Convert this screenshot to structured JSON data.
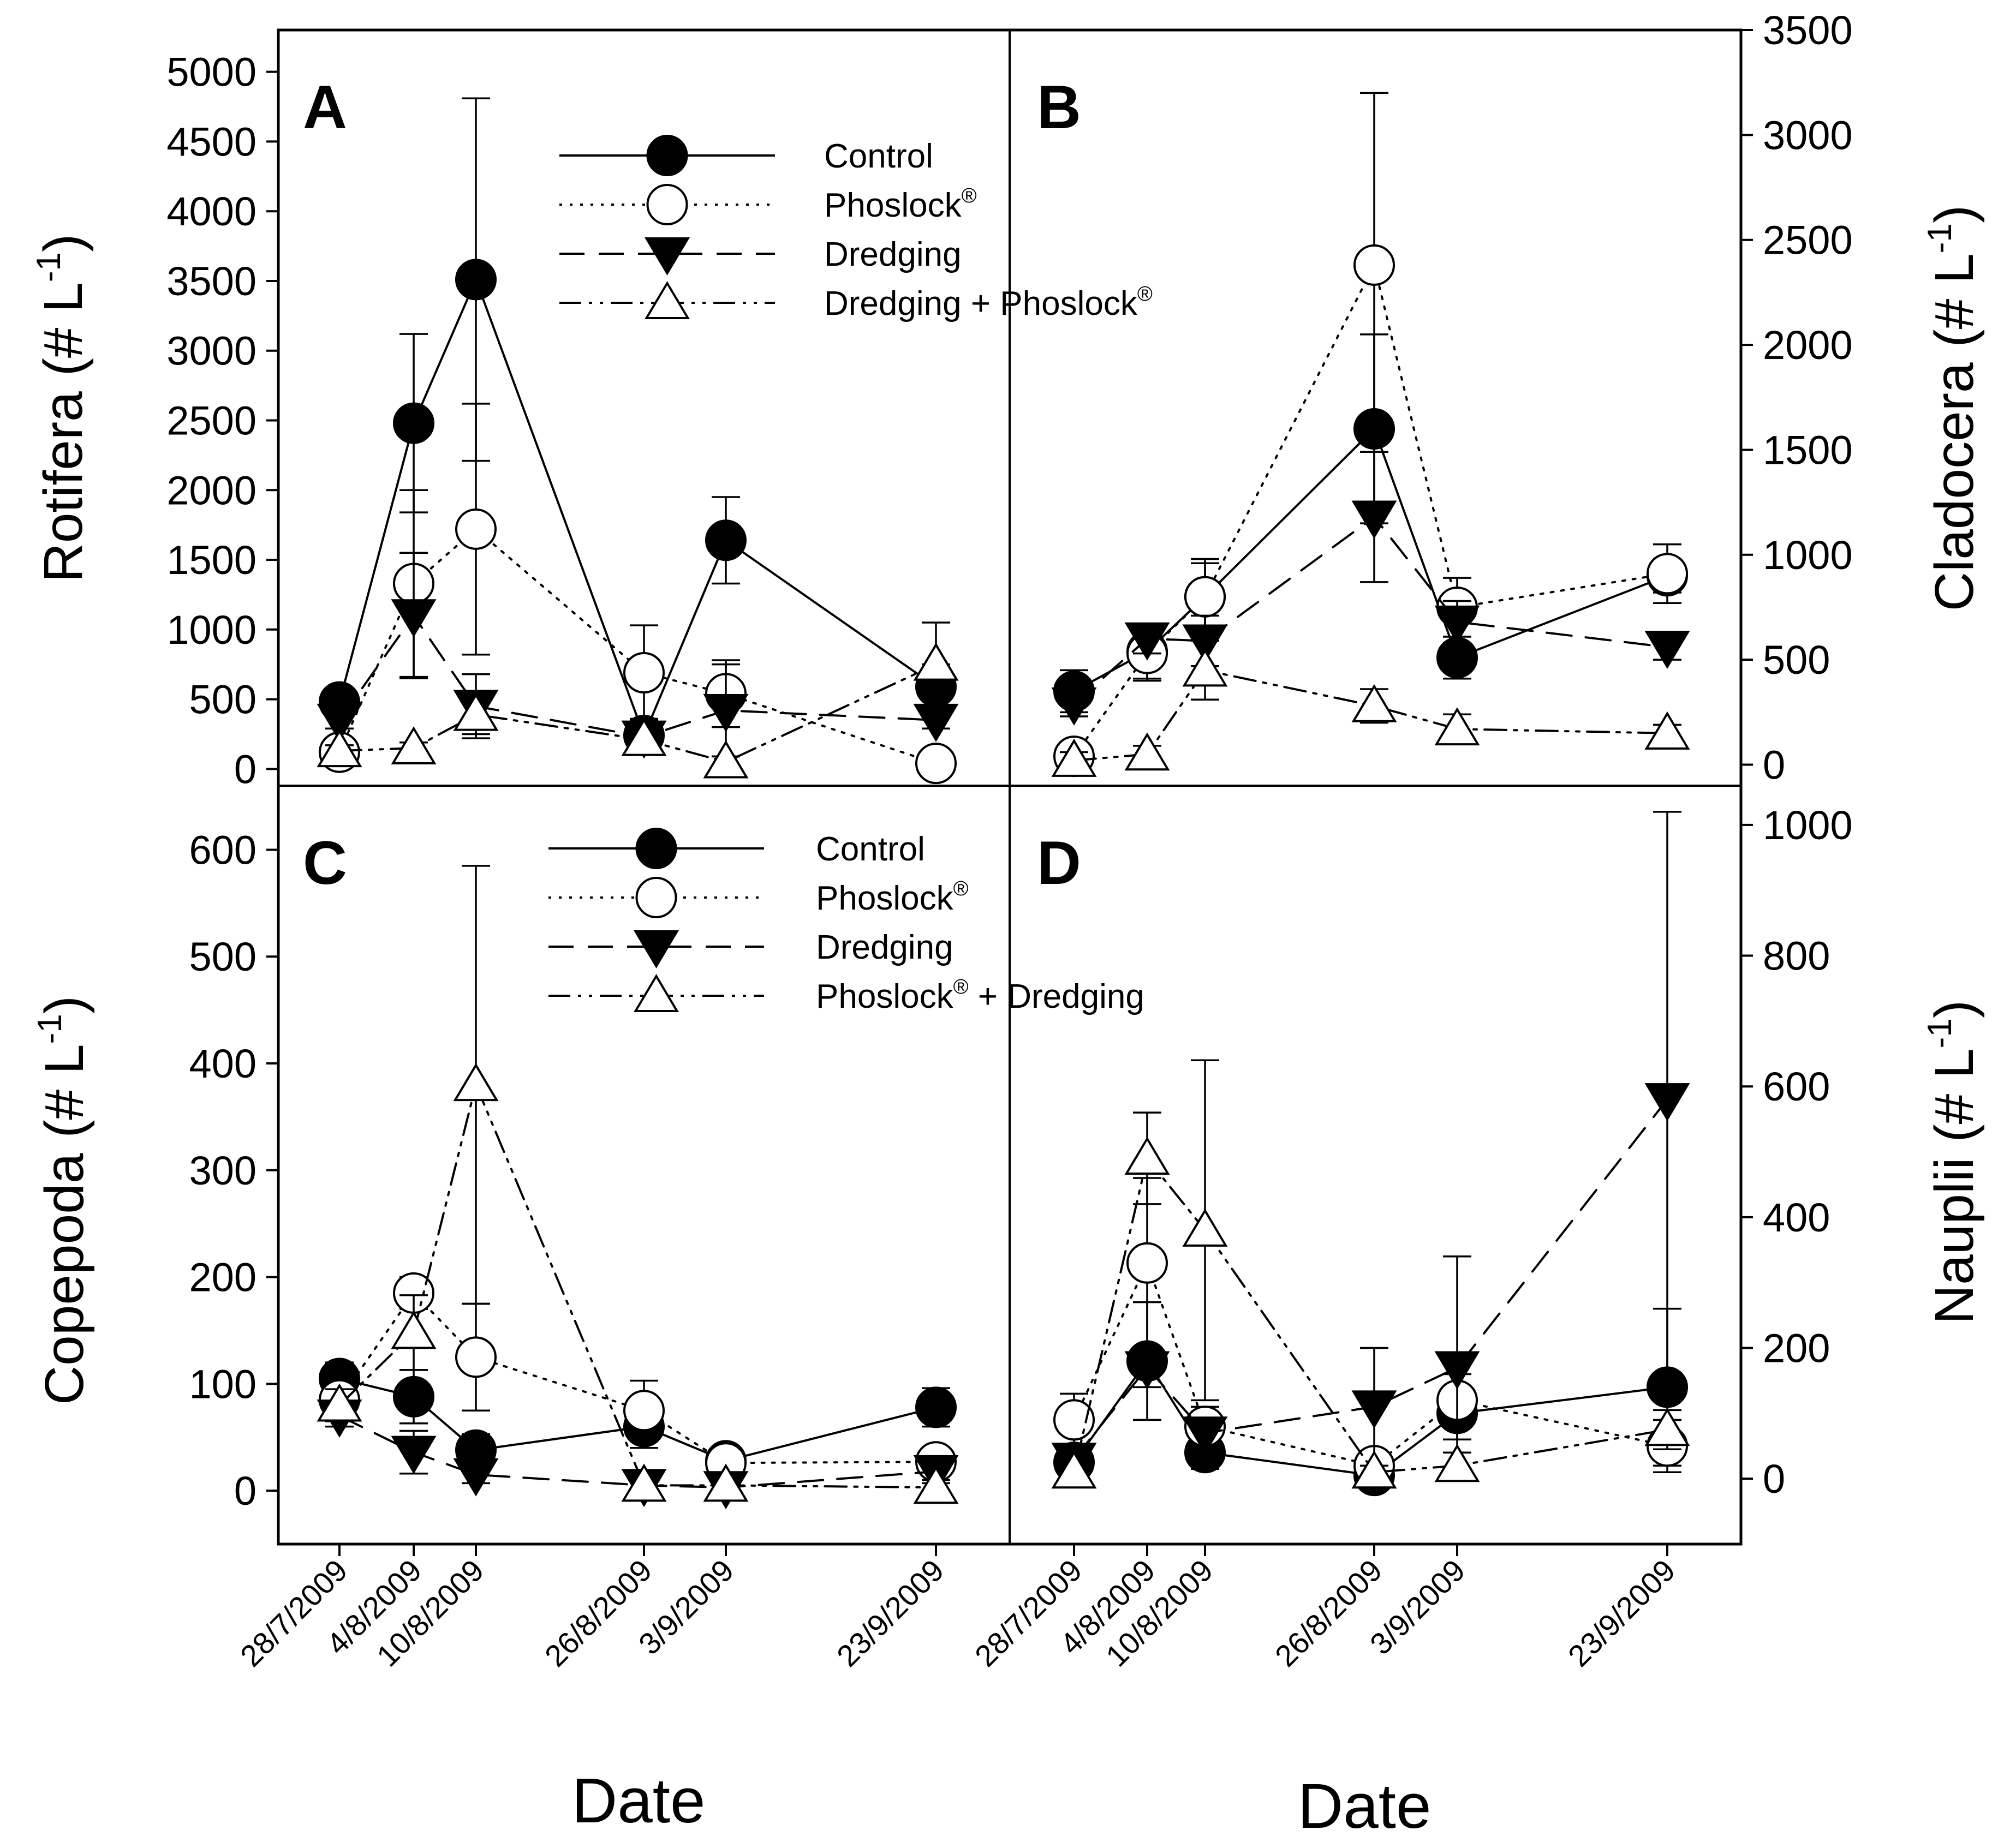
{
  "chart_data": {
    "type": "line",
    "dates": [
      "28/7/2009",
      "4/8/2009",
      "10/8/2009",
      "26/8/2009",
      "3/9/2009",
      "23/9/2009"
    ],
    "date_day_offsets": [
      0,
      7,
      13,
      29,
      37,
      57
    ],
    "xlabel": "Date",
    "series_style": [
      {
        "name": "Control",
        "marker": "circle",
        "fill": "filled",
        "dash": "solid"
      },
      {
        "name": "Phoslock",
        "marker": "circle",
        "fill": "open",
        "dash": "dotted"
      },
      {
        "name": "Dredging",
        "marker": "triangle-down",
        "fill": "filled",
        "dash": "dashed"
      },
      {
        "name": "Dredging + Phoslock",
        "marker": "triangle-up",
        "fill": "open",
        "dash": "dash-dot-dot"
      }
    ],
    "panels": [
      {
        "id": "A",
        "letter": "A",
        "ylabel": "Rotifera (# L",
        "ylabel_sup": "-1",
        "ylabel_close": ")",
        "ylim": [
          -120,
          5300
        ],
        "yticks": [
          "0",
          "500",
          "1000",
          "1500",
          "2000",
          "2500",
          "3000",
          "3500",
          "4000",
          "4500",
          "5000"
        ],
        "legend": [
          {
            "text": "Control",
            "sup": ""
          },
          {
            "text": "Phoslock",
            "sup": "®"
          },
          {
            "text": "Dredging",
            "sup": ""
          },
          {
            "text": "Dredging + Phoslock",
            "sup": "®"
          }
        ],
        "series": [
          {
            "name": "Control",
            "values": [
              480,
              2480,
              3510,
              240,
              1640,
              590
            ],
            "err": [
              90,
              640,
              1300,
              120,
              310,
              160
            ]
          },
          {
            "name": "Phoslock",
            "values": [
              120,
              1330,
              1720,
              690,
              540,
              40
            ],
            "err": [
              60,
              670,
              900,
              340,
              240,
              30
            ]
          },
          {
            "name": "Dredging",
            "values": [
              350,
              1100,
              450,
              230,
              420,
              350
            ],
            "err": [
              60,
              450,
              230,
              100,
              330,
              60
            ]
          },
          {
            "name": "Dredging + Phoslock",
            "values": [
              130,
              150,
              390,
              210,
              50,
              750
            ],
            "err": [
              40,
              40,
              140,
              50,
              40,
              300
            ]
          }
        ]
      },
      {
        "id": "B",
        "letter": "B",
        "ylabel": "Cladocera (# L",
        "ylabel_sup": "-1",
        "ylabel_close": ")",
        "ylim": [
          -100,
          3500
        ],
        "yticks": [
          "0",
          "500",
          "1000",
          "1500",
          "2000",
          "2500",
          "3000",
          "3500"
        ],
        "series": [
          {
            "name": "Control",
            "values": [
              350,
              540,
              800,
              1600,
              510,
              900
            ],
            "err": [
              100,
              130,
              160,
              450,
              100,
              80
            ]
          },
          {
            "name": "Phoslock",
            "values": [
              40,
              530,
              800,
              2380,
              750,
              910
            ],
            "err": [
              30,
              130,
              180,
              820,
              140,
              140
            ]
          },
          {
            "name": "Dredging",
            "values": [
              290,
              600,
              590,
              1180,
              680,
              560
            ],
            "err": [
              60,
              70,
              120,
              310,
              100,
              60
            ]
          },
          {
            "name": "Dredging + Phoslock",
            "values": [
              20,
              50,
              450,
              280,
              170,
              150
            ],
            "err": [
              40,
              40,
              140,
              80,
              70,
              40
            ]
          }
        ]
      },
      {
        "id": "C",
        "letter": "C",
        "ylabel": "Copepoda (# L",
        "ylabel_sup": "-1",
        "ylabel_close": ")",
        "ylim": [
          -50,
          660
        ],
        "yticks": [
          "0",
          "100",
          "200",
          "300",
          "400",
          "500",
          "600"
        ],
        "legend": [
          {
            "text": "Control",
            "sup": ""
          },
          {
            "text": "Phoslock",
            "sup": "®"
          },
          {
            "text": "Dredging",
            "sup": ""
          },
          {
            "text": "Phoslock",
            "sup": "®",
            "after": " + Dredging"
          }
        ],
        "series": [
          {
            "name": "Control",
            "values": [
              105,
              88,
              38,
              60,
              28,
              78
            ],
            "err": [
              15,
              25,
              15,
              20,
              8,
              18
            ]
          },
          {
            "name": "Phoslock",
            "values": [
              85,
              185,
              125,
              75,
              26,
              27
            ],
            "err": [
              20,
              15,
              50,
              28,
              8,
              8
            ]
          },
          {
            "name": "Dredging",
            "values": [
              70,
              36,
              15,
              5,
              3,
              18
            ],
            "err": [
              10,
              20,
              8,
              4,
              3,
              8
            ]
          },
          {
            "name": "Phoslock + Dredging",
            "values": [
              80,
              148,
              380,
              5,
              5,
              3
            ],
            "err": [
              15,
              35,
              205,
              4,
              4,
              4
            ]
          }
        ]
      },
      {
        "id": "D",
        "letter": "D",
        "ylabel": "Nauplii (# L",
        "ylabel_sup": "-1",
        "ylabel_close": ")",
        "ylim": [
          -100,
          1060
        ],
        "yticks": [
          "0",
          "200",
          "400",
          "600",
          "800",
          "1000"
        ],
        "series": [
          {
            "name": "Control",
            "values": [
              25,
              180,
              40,
              5,
              100,
              140
            ],
            "err": [
              15,
              90,
              25,
              5,
              40,
              120
            ]
          },
          {
            "name": "Phoslock",
            "values": [
              90,
              330,
              80,
              20,
              120,
              50
            ],
            "err": [
              40,
              130,
              30,
              15,
              40,
              40
            ]
          },
          {
            "name": "Dredging",
            "values": [
              30,
              170,
              70,
              110,
              170,
              580
            ],
            "err": [
              15,
              30,
              20,
              90,
              170,
              440
            ]
          },
          {
            "name": "Phoslock + Dredging",
            "values": [
              10,
              490,
              380,
              10,
              20,
              75
            ],
            "err": [
              10,
              70,
              260,
              10,
              20,
              30
            ]
          }
        ]
      }
    ]
  }
}
